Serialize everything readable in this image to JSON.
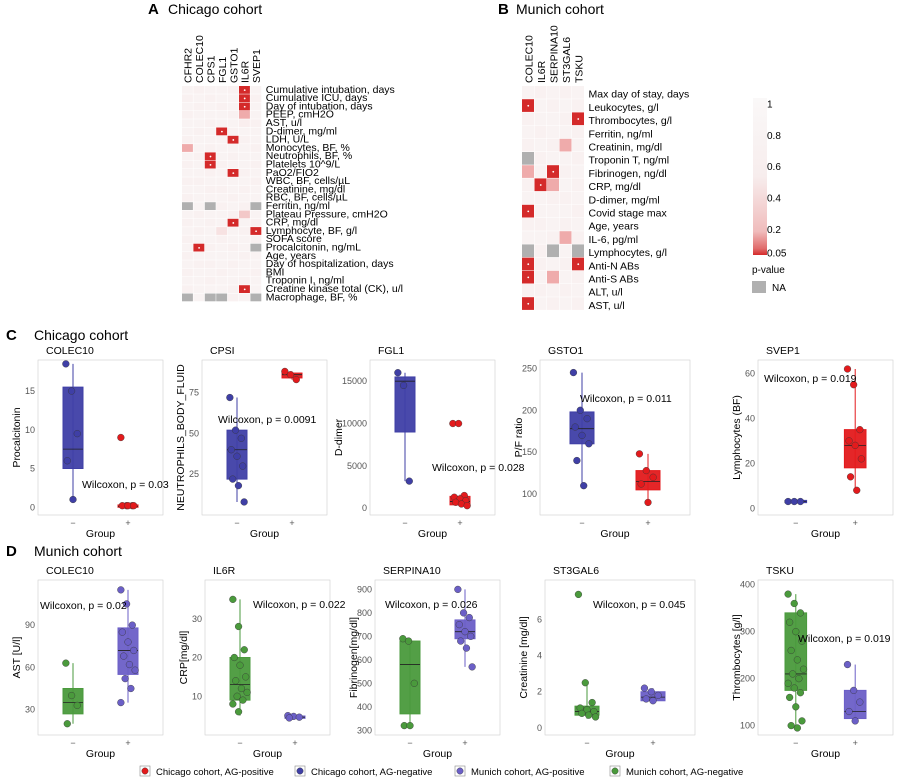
{
  "panels": {
    "A": {
      "letter": "A",
      "title": "Chicago cohort"
    },
    "B": {
      "letter": "B",
      "title": "Munich cohort"
    },
    "C": {
      "letter": "C",
      "title": "Chicago cohort"
    },
    "D": {
      "letter": "D",
      "title": "Munich cohort"
    }
  },
  "colors": {
    "na": "#b0b0b0",
    "sig": "#d73027",
    "chicago_pos": "#e31a1c",
    "chicago_neg": "#3f3fa6",
    "munich_pos": "#6b5fc7",
    "munich_neg": "#4a9a3c"
  },
  "colorbar": {
    "ticks": [
      "1",
      "0.8",
      "0.6",
      "0.4",
      "0.2",
      "0.05"
    ],
    "label": "p-value",
    "na_label": "NA"
  },
  "chart_data": [
    {
      "type": "heatmap",
      "id": "A",
      "columns": [
        "CFHR2",
        "COLEC10",
        "CPS1",
        "FGL1",
        "GSTO1",
        "IL6R",
        "SVEP1"
      ],
      "rows": [
        "Cumulative intubation, days",
        "Cumulative ICU, days",
        "Day of intubation, days",
        "PEEP, cmH2O",
        "AST, u/l",
        "D-dimer, mg/ml",
        "LDH, U/L",
        "Monocytes, BF, %",
        "Neutrophils, BF, %",
        "Platelets 10^9/L",
        "PaO2/FIO2",
        "WBC, BF, cells/µL",
        "Creatinine, mg/dl",
        "RBC, BF, cells/µL",
        "Ferritin, ng/ml",
        "Plateau Pressure, cmH2O",
        "CRP, mg/dl",
        "Lymphocyte, BF, g/l",
        "SOFA score",
        "Procalcitonin, ng/mL",
        "Age, years",
        "Day of hospitalization, days",
        "BMI",
        "Troponin I, ng/ml",
        "Creatine kinase total (CK), u/l",
        "Macrophage, BF, %"
      ],
      "values": [
        [
          0.9,
          0.85,
          0.9,
          0.9,
          0.85,
          0.02,
          0.9
        ],
        [
          0.85,
          0.9,
          0.85,
          0.9,
          0.9,
          0.02,
          0.85
        ],
        [
          0.9,
          0.85,
          0.9,
          0.85,
          0.9,
          0.03,
          0.9
        ],
        [
          0.85,
          0.9,
          0.9,
          0.9,
          0.85,
          0.12,
          0.9
        ],
        [
          0.9,
          0.9,
          0.85,
          0.9,
          0.9,
          0.8,
          0.85
        ],
        [
          0.9,
          0.85,
          0.9,
          0.03,
          0.85,
          0.9,
          0.9
        ],
        [
          0.85,
          0.9,
          0.9,
          0.9,
          0.03,
          0.85,
          0.9
        ],
        [
          0.12,
          0.9,
          0.85,
          0.9,
          0.9,
          0.9,
          0.85
        ],
        [
          0.9,
          0.85,
          0.02,
          0.9,
          0.85,
          0.9,
          0.9
        ],
        [
          0.85,
          0.9,
          0.03,
          0.85,
          0.9,
          0.9,
          0.85
        ],
        [
          0.9,
          0.9,
          0.85,
          0.9,
          0.02,
          0.85,
          0.9
        ],
        [
          0.85,
          0.85,
          0.9,
          0.9,
          0.9,
          0.9,
          0.85
        ],
        [
          0.9,
          0.9,
          0.85,
          0.85,
          0.9,
          0.85,
          0.9
        ],
        [
          0.85,
          0.9,
          0.9,
          0.9,
          0.85,
          0.9,
          0.9
        ],
        [
          null,
          0.9,
          null,
          0.85,
          0.9,
          0.85,
          null
        ],
        [
          0.9,
          0.85,
          0.9,
          0.9,
          0.85,
          0.3,
          0.9
        ],
        [
          0.85,
          0.9,
          0.85,
          0.9,
          0.04,
          0.9,
          0.85
        ],
        [
          0.9,
          0.85,
          0.9,
          0.6,
          0.9,
          0.85,
          0.02
        ],
        [
          0.85,
          0.9,
          0.9,
          0.85,
          0.9,
          0.9,
          0.85
        ],
        [
          0.9,
          0.03,
          0.85,
          0.9,
          0.85,
          0.9,
          null
        ],
        [
          0.85,
          0.9,
          0.9,
          0.9,
          0.9,
          0.85,
          0.9
        ],
        [
          0.9,
          0.85,
          0.85,
          0.9,
          0.85,
          0.9,
          0.9
        ],
        [
          0.85,
          0.9,
          0.9,
          0.85,
          0.9,
          0.9,
          0.85
        ],
        [
          0.9,
          0.9,
          0.85,
          0.9,
          0.9,
          0.85,
          0.9
        ],
        [
          0.85,
          0.9,
          0.9,
          0.9,
          0.85,
          0.04,
          0.9
        ],
        [
          null,
          0.9,
          null,
          null,
          0.85,
          0.9,
          null
        ]
      ]
    },
    {
      "type": "heatmap",
      "id": "B",
      "columns": [
        "COLEC10",
        "IL6R",
        "SERPINA10",
        "ST3GAL6",
        "TSKU"
      ],
      "rows": [
        "Max day of stay, days",
        "Leukocytes, g/l",
        "Thrombocytes, g/l",
        "Ferritin, ng/ml",
        "Creatinin, mg/dl",
        "Troponin T, ng/ml",
        "Fibrinogen, ng/dl",
        "CRP, mg/dl",
        "D-dimer, mg/ml",
        "Covid stage max",
        "Age, years",
        "IL-6, pg/ml",
        "Lymphocytes, g/l",
        "Anti-N ABs",
        "Anti-S ABs",
        "ALT, u/l",
        "AST, u/l"
      ],
      "values": [
        [
          0.9,
          0.85,
          0.9,
          0.85,
          0.9
        ],
        [
          0.03,
          0.9,
          0.85,
          0.9,
          0.85
        ],
        [
          0.85,
          0.9,
          0.9,
          0.85,
          0.02
        ],
        [
          0.9,
          0.85,
          0.9,
          0.9,
          0.85
        ],
        [
          0.85,
          0.9,
          0.85,
          0.12,
          0.9
        ],
        [
          null,
          0.85,
          0.9,
          0.9,
          0.85
        ],
        [
          0.12,
          0.85,
          0.02,
          0.85,
          0.9
        ],
        [
          0.85,
          0.03,
          0.12,
          0.9,
          0.85
        ],
        [
          0.9,
          0.9,
          0.85,
          0.85,
          0.9
        ],
        [
          0.03,
          0.9,
          0.9,
          0.9,
          0.85
        ],
        [
          0.85,
          0.85,
          0.9,
          0.85,
          0.9
        ],
        [
          0.9,
          0.9,
          0.85,
          0.12,
          0.85
        ],
        [
          null,
          0.85,
          null,
          0.9,
          null
        ],
        [
          0.02,
          0.85,
          0.9,
          0.85,
          0.03
        ],
        [
          0.04,
          0.9,
          0.12,
          0.9,
          0.85
        ],
        [
          0.85,
          0.85,
          0.9,
          0.85,
          0.9
        ],
        [
          0.03,
          0.9,
          0.85,
          0.9,
          0.85
        ]
      ]
    },
    {
      "type": "box",
      "id": "C1",
      "title": "COLEC10",
      "ylabel": "Procalcitonin",
      "xlabel": "Group",
      "groups": [
        "−",
        "+"
      ],
      "ylim": [
        -1,
        19
      ],
      "yticks": [
        0,
        5,
        10,
        15
      ],
      "stat": "Wilcoxon, p = 0.03",
      "series": [
        {
          "color_key": "chicago_neg",
          "points": [
            18.5,
            15,
            9.5,
            6,
            1
          ],
          "box": [
            5,
            7.5,
            15.5
          ],
          "whisker": [
            1,
            18.5
          ]
        },
        {
          "color_key": "chicago_pos",
          "points": [
            9,
            0.2,
            0.2,
            0.2,
            0.2,
            0.2
          ],
          "box": [
            0,
            0.1,
            0.3
          ],
          "whisker": [
            0,
            0.4
          ]
        }
      ]
    },
    {
      "type": "box",
      "id": "C2",
      "title": "CPSI",
      "ylabel": "NEUTROPHILS_BODY_FLUID",
      "xlabel": "Group",
      "groups": [
        "−",
        "+"
      ],
      "ylim": [
        0,
        95
      ],
      "yticks": [
        25,
        50,
        75
      ],
      "stat": "Wilcoxon, p = 0.0091",
      "series": [
        {
          "color_key": "chicago_neg",
          "points": [
            72,
            52,
            47,
            40,
            36,
            30,
            22,
            18,
            8
          ],
          "box": [
            22,
            40,
            52
          ],
          "whisker": [
            8,
            72
          ]
        },
        {
          "color_key": "chicago_pos",
          "points": [
            88,
            86,
            83
          ],
          "box": [
            84,
            86,
            87
          ],
          "whisker": [
            83,
            88
          ]
        }
      ]
    },
    {
      "type": "box",
      "id": "C3",
      "title": "FGL1",
      "ylabel": "D-dimer",
      "xlabel": "Group",
      "groups": [
        "−",
        "+"
      ],
      "ylim": [
        -800,
        17500
      ],
      "yticks": [
        0,
        5000,
        10000,
        15000
      ],
      "stat": "Wilcoxon, p = 0.028",
      "series": [
        {
          "color_key": "chicago_neg",
          "points": [
            16000,
            14500,
            3200
          ],
          "box": [
            9000,
            15000,
            15500
          ],
          "whisker": [
            3200,
            16000
          ]
        },
        {
          "color_key": "chicago_pos",
          "points": [
            10000,
            10000,
            1500,
            1300,
            1100,
            900,
            700,
            500,
            300
          ],
          "box": [
            400,
            800,
            1400
          ],
          "whisker": [
            200,
            1600
          ]
        }
      ]
    },
    {
      "type": "box",
      "id": "C4",
      "title": "GSTO1",
      "ylabel": "P/F ratio",
      "xlabel": "Group",
      "groups": [
        "−",
        "+"
      ],
      "ylim": [
        75,
        260
      ],
      "yticks": [
        100,
        150,
        200,
        250
      ],
      "stat": "Wilcoxon, p = 0.011",
      "series": [
        {
          "color_key": "chicago_neg",
          "points": [
            245,
            200,
            190,
            180,
            170,
            160,
            140,
            110
          ],
          "box": [
            160,
            178,
            198
          ],
          "whisker": [
            110,
            245
          ]
        },
        {
          "color_key": "chicago_pos",
          "points": [
            148,
            128,
            120,
            112,
            90
          ],
          "box": [
            105,
            115,
            128
          ],
          "whisker": [
            90,
            148
          ]
        }
      ]
    },
    {
      "type": "box",
      "id": "C5",
      "title": "SVEP1",
      "ylabel": "Lymphocytes (BF)",
      "xlabel": "Group",
      "groups": [
        "−",
        "+"
      ],
      "ylim": [
        -3,
        66
      ],
      "yticks": [
        0,
        20,
        40,
        60
      ],
      "stat": "Wilcoxon, p = 0.019",
      "series": [
        {
          "color_key": "chicago_neg",
          "points": [
            3,
            3,
            3
          ],
          "box": [
            2.5,
            3,
            3.5
          ],
          "whisker": [
            2.5,
            3.5
          ]
        },
        {
          "color_key": "chicago_pos",
          "points": [
            62,
            55,
            35,
            30,
            28,
            22,
            14,
            8
          ],
          "box": [
            18,
            28,
            35
          ],
          "whisker": [
            8,
            62
          ]
        }
      ]
    },
    {
      "type": "box",
      "id": "D1",
      "title": "COLEC10",
      "ylabel": "AST [U/l]",
      "xlabel": "Group",
      "groups": [
        "−",
        "+"
      ],
      "ylim": [
        12,
        122
      ],
      "yticks": [
        30,
        60,
        90
      ],
      "stat": "Wilcoxon, p = 0.02",
      "series": [
        {
          "color_key": "munich_neg",
          "points": [
            63,
            40,
            33,
            20
          ],
          "box": [
            27,
            35,
            45
          ],
          "whisker": [
            20,
            63
          ]
        },
        {
          "color_key": "munich_pos",
          "points": [
            115,
            105,
            90,
            85,
            78,
            72,
            68,
            62,
            58,
            52,
            45,
            35
          ],
          "box": [
            55,
            72,
            88
          ],
          "whisker": [
            35,
            115
          ]
        }
      ]
    },
    {
      "type": "box",
      "id": "D2",
      "title": "IL6R",
      "ylabel": "CRP[mg/dl]",
      "xlabel": "Group",
      "groups": [
        "−",
        "+"
      ],
      "ylim": [
        0,
        40
      ],
      "yticks": [
        10,
        20,
        30
      ],
      "stat": "Wilcoxon, p = 0.022",
      "series": [
        {
          "color_key": "munich_neg",
          "points": [
            35,
            28,
            22,
            20,
            18,
            15,
            14,
            12,
            11,
            10,
            9,
            8,
            6
          ],
          "box": [
            9,
            13,
            20
          ],
          "whisker": [
            5,
            35
          ]
        },
        {
          "color_key": "munich_pos",
          "points": [
            5,
            4.8,
            4.6,
            4.4
          ],
          "box": [
            4.3,
            4.6,
            4.9
          ],
          "whisker": [
            4.2,
            5
          ]
        }
      ]
    },
    {
      "type": "box",
      "id": "D3",
      "title": "SERPINA10",
      "ylabel": "Fibrinogen[mg/dl]",
      "xlabel": "Group",
      "groups": [
        "−",
        "+"
      ],
      "ylim": [
        280,
        940
      ],
      "yticks": [
        300,
        400,
        500,
        600,
        700,
        800,
        900
      ],
      "stat": "Wilcoxon, p = 0.026",
      "series": [
        {
          "color_key": "munich_neg",
          "points": [
            690,
            680,
            500,
            320,
            320
          ],
          "box": [
            370,
            580,
            680
          ],
          "whisker": [
            320,
            690
          ]
        },
        {
          "color_key": "munich_pos",
          "points": [
            900,
            800,
            780,
            750,
            720,
            700,
            680,
            650,
            570
          ],
          "box": [
            690,
            720,
            770
          ],
          "whisker": [
            570,
            900
          ]
        }
      ]
    },
    {
      "type": "box",
      "id": "D4",
      "title": "ST3GAL6",
      "ylabel": "Creatinine [mg/dl]",
      "xlabel": "Group",
      "groups": [
        "−",
        "+"
      ],
      "ylim": [
        -0.4,
        8.2
      ],
      "yticks": [
        0,
        2,
        4,
        6
      ],
      "stat": "Wilcoxon, p = 0.045",
      "series": [
        {
          "color_key": "munich_neg",
          "points": [
            7.4,
            2.5,
            1.4,
            1.1,
            1,
            0.9,
            0.8,
            0.7,
            0.6
          ],
          "box": [
            0.7,
            0.9,
            1.2
          ],
          "whisker": [
            0.5,
            2.5
          ]
        },
        {
          "color_key": "munich_pos",
          "points": [
            2.2,
            2,
            1.8,
            1.6,
            1.5
          ],
          "box": [
            1.5,
            1.7,
            2
          ],
          "whisker": [
            1.4,
            2.2
          ]
        }
      ]
    },
    {
      "type": "box",
      "id": "D5",
      "title": "TSKU",
      "ylabel": "Thrombocytes [g/l]",
      "xlabel": "Group",
      "groups": [
        "−",
        "+"
      ],
      "ylim": [
        80,
        410
      ],
      "yticks": [
        100,
        200,
        300,
        400
      ],
      "stat": "Wilcoxon, p = 0.019",
      "series": [
        {
          "color_key": "munich_neg",
          "points": [
            380,
            360,
            340,
            320,
            300,
            280,
            260,
            240,
            220,
            210,
            200,
            190,
            180,
            170,
            160,
            140,
            110,
            100,
            95
          ],
          "box": [
            175,
            210,
            340
          ],
          "whisker": [
            95,
            380
          ]
        },
        {
          "color_key": "munich_pos",
          "points": [
            230,
            175,
            150,
            130,
            110
          ],
          "box": [
            115,
            130,
            175
          ],
          "whisker": [
            110,
            230
          ]
        }
      ]
    }
  ],
  "legend": [
    {
      "label": "Chicago cohort, AG-positive",
      "color_key": "chicago_pos"
    },
    {
      "label": "Chicago cohort, AG-negative",
      "color_key": "chicago_neg"
    },
    {
      "label": "Munich cohort, AG-positive",
      "color_key": "munich_pos"
    },
    {
      "label": "Munich cohort, AG-negative",
      "color_key": "munich_neg"
    }
  ]
}
